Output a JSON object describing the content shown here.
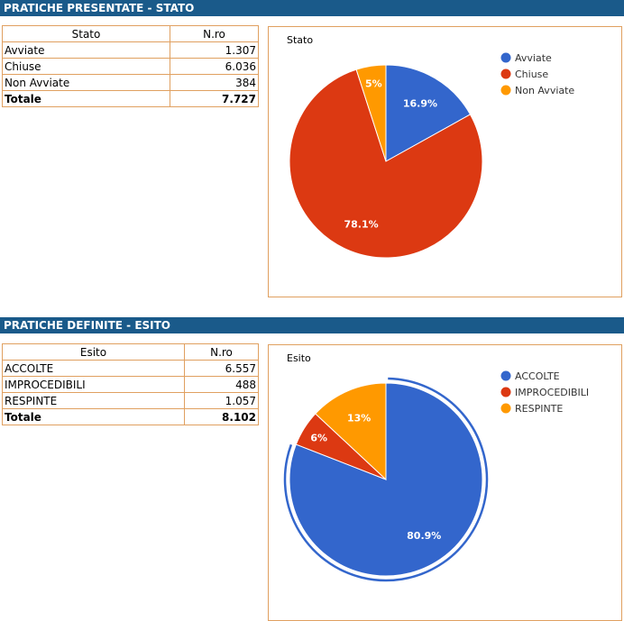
{
  "sections": {
    "stato_header": "PRATICHE PRESENTATE - STATO",
    "esito_header": "PRATICHE DEFINITE - ESITO"
  },
  "stato_table": {
    "headers": [
      "Stato",
      "N.ro"
    ],
    "rows": [
      {
        "label": "Avviate",
        "value": "1.307"
      },
      {
        "label": "Chiuse",
        "value": "6.036"
      },
      {
        "label": "Non Avviate",
        "value": "384"
      }
    ],
    "total": {
      "label": "Totale",
      "value": "7.727"
    }
  },
  "esito_table": {
    "headers": [
      "Esito",
      "N.ro"
    ],
    "rows": [
      {
        "label": "ACCOLTE",
        "value": "6.557"
      },
      {
        "label": "IMPROCEDIBILI",
        "value": "488"
      },
      {
        "label": "RESPINTE",
        "value": "1.057"
      }
    ],
    "total": {
      "label": "Totale",
      "value": "8.102"
    }
  },
  "chart_data": [
    {
      "type": "pie",
      "title": "Stato",
      "categories": [
        "Avviate",
        "Chiuse",
        "Non Avviate"
      ],
      "values": [
        1307,
        6036,
        384
      ],
      "labels": [
        "16.9%",
        "78.1%",
        "5%"
      ],
      "colors": [
        "#3366cc",
        "#dc3912",
        "#ff9900"
      ],
      "legend": "right",
      "highlight": -1
    },
    {
      "type": "pie",
      "title": "Esito",
      "categories": [
        "ACCOLTE",
        "IMPROCEDIBILI",
        "RESPINTE"
      ],
      "values": [
        6557,
        488,
        1057
      ],
      "labels": [
        "80.9%",
        "6%",
        "13%"
      ],
      "colors": [
        "#3366cc",
        "#dc3912",
        "#ff9900"
      ],
      "legend": "right",
      "highlight": 0
    }
  ]
}
